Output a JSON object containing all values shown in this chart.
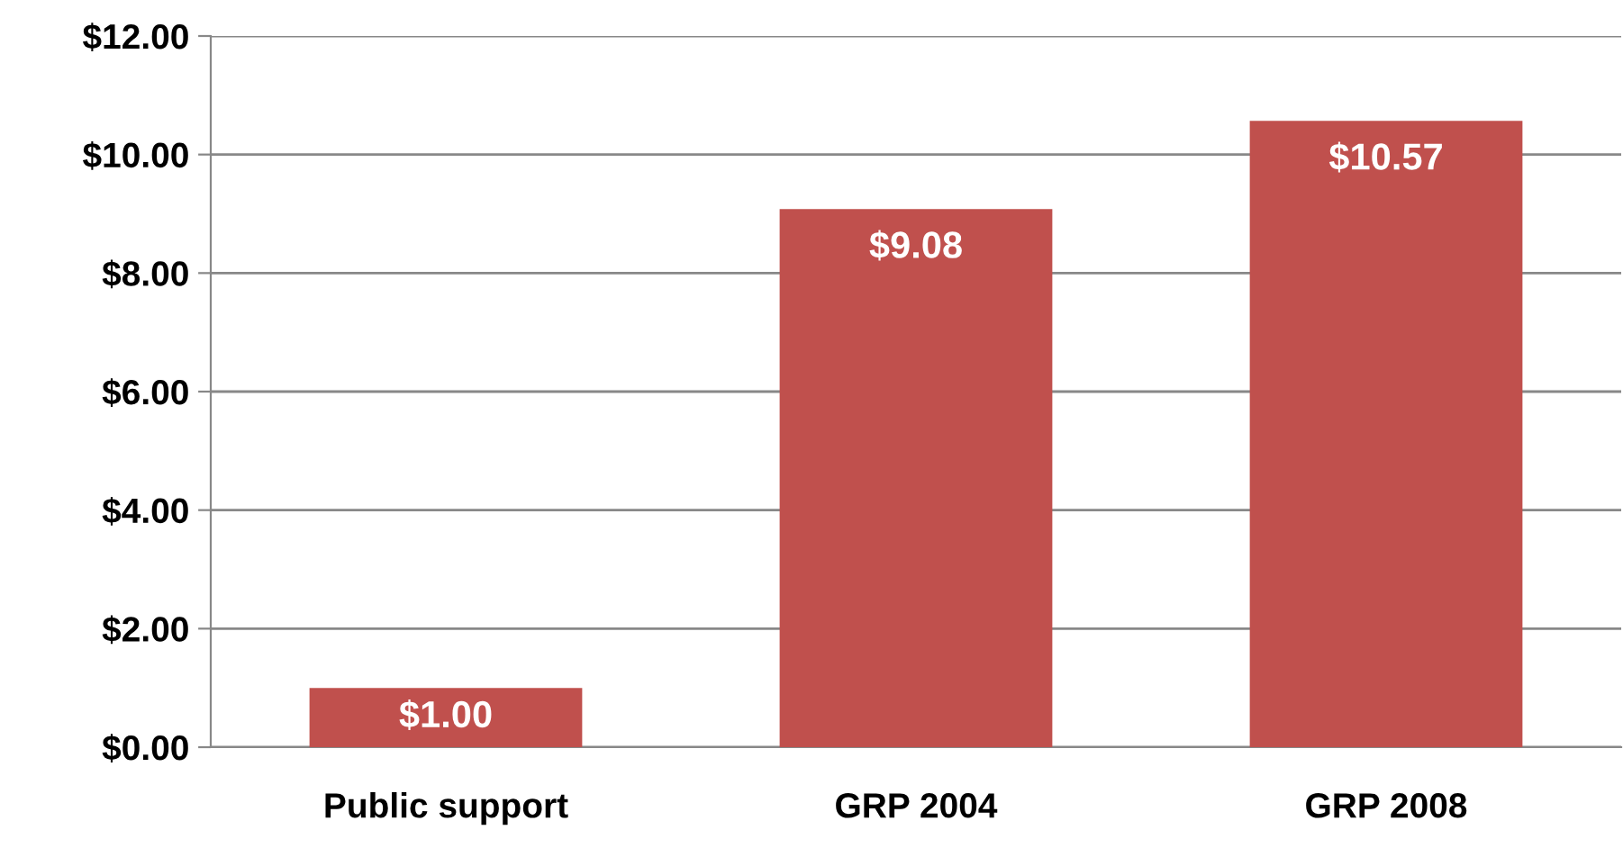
{
  "chart_data": {
    "type": "bar",
    "categories": [
      "Public support",
      "GRP 2004",
      "GRP 2008"
    ],
    "values": [
      1.0,
      9.08,
      10.57
    ],
    "value_labels": [
      "$1.00",
      "$9.08",
      "$10.57"
    ],
    "color": "#c0504d",
    "ylim": [
      0,
      12
    ],
    "yticks": [
      {
        "value": 0,
        "label": "$0.00"
      },
      {
        "value": 2,
        "label": "$2.00"
      },
      {
        "value": 4,
        "label": "$4.00"
      },
      {
        "value": 6,
        "label": "$6.00"
      },
      {
        "value": 8,
        "label": "$8.00"
      },
      {
        "value": 10,
        "label": "$10.00"
      },
      {
        "value": 12,
        "label": "$12.00"
      }
    ],
    "grid": "y"
  }
}
